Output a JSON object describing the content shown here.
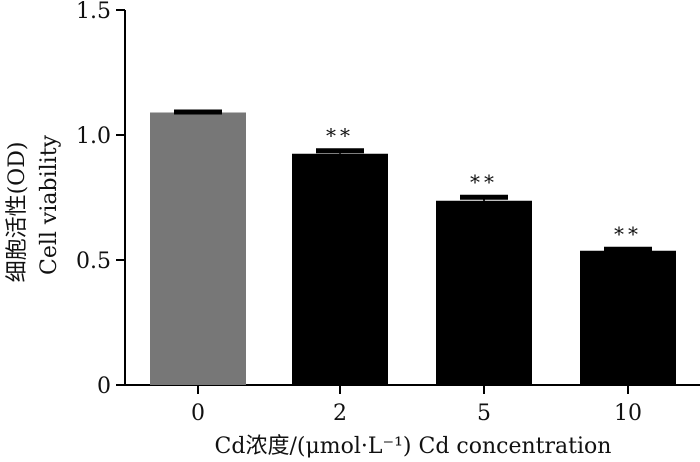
{
  "chart_data": {
    "type": "bar",
    "categories": [
      "0",
      "2",
      "5",
      "10"
    ],
    "values": [
      1.09,
      0.925,
      0.737,
      0.537
    ],
    "errors": [
      0.008,
      0.018,
      0.02,
      0.012
    ],
    "significance": [
      "",
      "**",
      "**",
      "**"
    ],
    "bar_colors": [
      "#777777",
      "#000000",
      "#000000",
      "#000000"
    ],
    "title": "",
    "xlabel": "Cd浓度/(μmol·L⁻¹)  Cd concentration",
    "ylabel_cn": "细胞活性(OD)",
    "ylabel_en": "Cell viability",
    "ylim": [
      0,
      1.5
    ],
    "yticks": [
      0,
      0.5,
      1.0,
      1.5
    ],
    "ytick_labels": [
      "0",
      "0.5",
      "1.0",
      "1.5"
    ]
  }
}
